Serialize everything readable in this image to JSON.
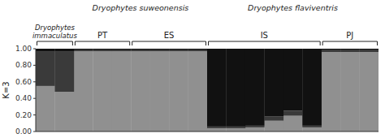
{
  "chart_data": {
    "type": "bar",
    "stacked": true,
    "y_label": "K=3",
    "categories": [
      null,
      null,
      null,
      null,
      null,
      null,
      null,
      null,
      null,
      null,
      null,
      null,
      null,
      null,
      null,
      null,
      null,
      null
    ],
    "series": [
      {
        "color": "#909090",
        "values": [
          0.55,
          0.48,
          0.97,
          0.97,
          0.97,
          0.97,
          0.97,
          0.97,
          0.97,
          0.04,
          0.04,
          0.05,
          0.13,
          0.19,
          0.05,
          0.96,
          0.96,
          0.96
        ]
      },
      {
        "color": "#3a3a3a",
        "values": [
          0.42,
          0.49,
          0.02,
          0.02,
          0.02,
          0.02,
          0.02,
          0.02,
          0.02,
          0.02,
          0.02,
          0.02,
          0.05,
          0.06,
          0.02,
          0.03,
          0.03,
          0.03
        ]
      },
      {
        "color": "#111111",
        "values": [
          0.03,
          0.03,
          0.01,
          0.01,
          0.01,
          0.01,
          0.01,
          0.01,
          0.01,
          0.94,
          0.94,
          0.93,
          0.82,
          0.75,
          0.93,
          0.01,
          0.01,
          0.01
        ]
      }
    ],
    "ylim": [
      0,
      1.0
    ],
    "yticks": [
      {
        "value": 0.0,
        "label": "0.00"
      },
      {
        "value": 0.2,
        "label": "0.20"
      },
      {
        "value": 0.4,
        "label": "0.40"
      },
      {
        "value": 0.6,
        "label": "0.60"
      },
      {
        "value": 0.8,
        "label": "0.80"
      },
      {
        "value": 1.0,
        "label": "1.00"
      }
    ],
    "tick_labels": "y",
    "grid": false,
    "groups": [
      {
        "label": [
          "Dryophytes",
          "immaculatus"
        ],
        "positions": [
          0,
          1
        ]
      },
      {
        "label": [
          "PT"
        ],
        "positions": [
          2,
          3,
          4
        ]
      },
      {
        "label": [
          "ES"
        ],
        "positions": [
          5,
          6,
          7,
          8
        ]
      },
      {
        "label": [
          "IS"
        ],
        "positions": [
          9,
          10,
          11,
          12,
          13,
          14
        ]
      },
      {
        "label": [
          "PJ"
        ],
        "positions": [
          15,
          16,
          17
        ]
      }
    ],
    "annotations": [
      {
        "text": "Dryophytes suweonensis",
        "positions": [
          2,
          3,
          4,
          5,
          6,
          7,
          8
        ]
      },
      {
        "text": "Dryophytes flaviventris",
        "positions": [
          9,
          10,
          11,
          12,
          13,
          14,
          15,
          16,
          17
        ]
      }
    ]
  }
}
